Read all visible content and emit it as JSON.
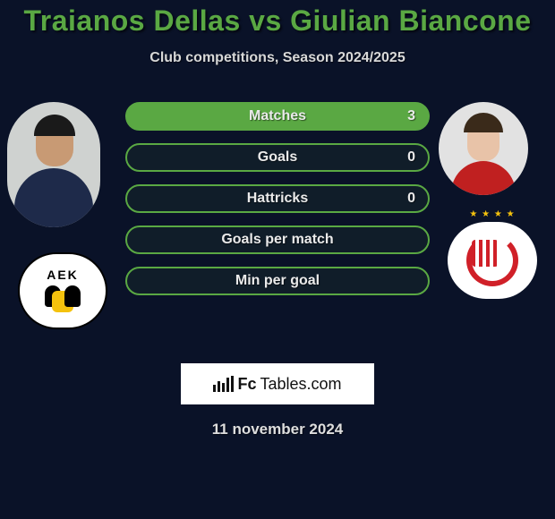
{
  "title": "Traianos Dellas vs Giulian Biancone",
  "subtitle": "Club competitions, Season 2024/2025",
  "colors": {
    "background": "#0a1228",
    "accent": "#5aa843",
    "text": "#eaeaea"
  },
  "left_player": {
    "name": "Traianos Dellas",
    "club_label": "AEK"
  },
  "right_player": {
    "name": "Giulian Biancone",
    "club_icon": "olympiacos-wreath"
  },
  "stats": [
    {
      "label": "Matches",
      "value": "3",
      "filled": true
    },
    {
      "label": "Goals",
      "value": "0",
      "filled": false
    },
    {
      "label": "Hattricks",
      "value": "0",
      "filled": false
    },
    {
      "label": "Goals per match",
      "value": "",
      "filled": false
    },
    {
      "label": "Min per goal",
      "value": "",
      "filled": false
    }
  ],
  "brand": {
    "fc": "Fc",
    "tables": "Tables.com"
  },
  "date": "11 november 2024"
}
